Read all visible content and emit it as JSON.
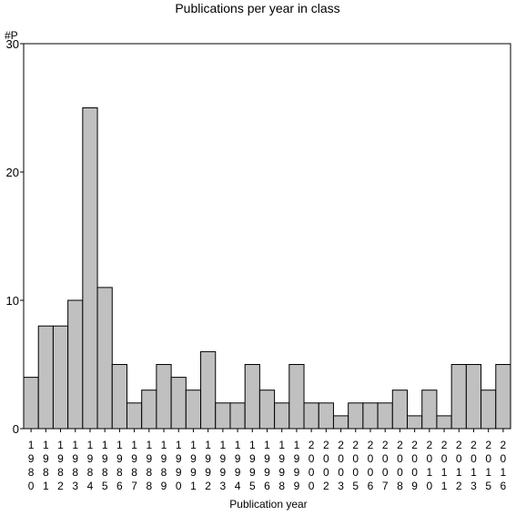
{
  "chart_data": {
    "type": "bar",
    "title": "Publications per year in class",
    "ylabel": "#P",
    "xlabel": "Publication year",
    "ylim": [
      0,
      30
    ],
    "yticks": [
      0,
      10,
      20,
      30
    ],
    "grid": false,
    "categories": [
      "1980",
      "1981",
      "1982",
      "1983",
      "1984",
      "1985",
      "1986",
      "1987",
      "1988",
      "1989",
      "1990",
      "1991",
      "1992",
      "1993",
      "1994",
      "1995",
      "1996",
      "1998",
      "1999",
      "2000",
      "2002",
      "2003",
      "2005",
      "2006",
      "2007",
      "2008",
      "2009",
      "2010",
      "2011",
      "2012",
      "2013",
      "2015",
      "2016"
    ],
    "values": [
      4,
      8,
      8,
      10,
      25,
      11,
      5,
      2,
      3,
      5,
      4,
      3,
      6,
      2,
      2,
      5,
      3,
      2,
      5,
      2,
      2,
      1,
      2,
      2,
      2,
      3,
      1,
      3,
      1,
      5,
      5,
      3,
      5
    ],
    "colors": {
      "bar_fill": "#c0c0c0",
      "bar_stroke": "#000000"
    }
  }
}
